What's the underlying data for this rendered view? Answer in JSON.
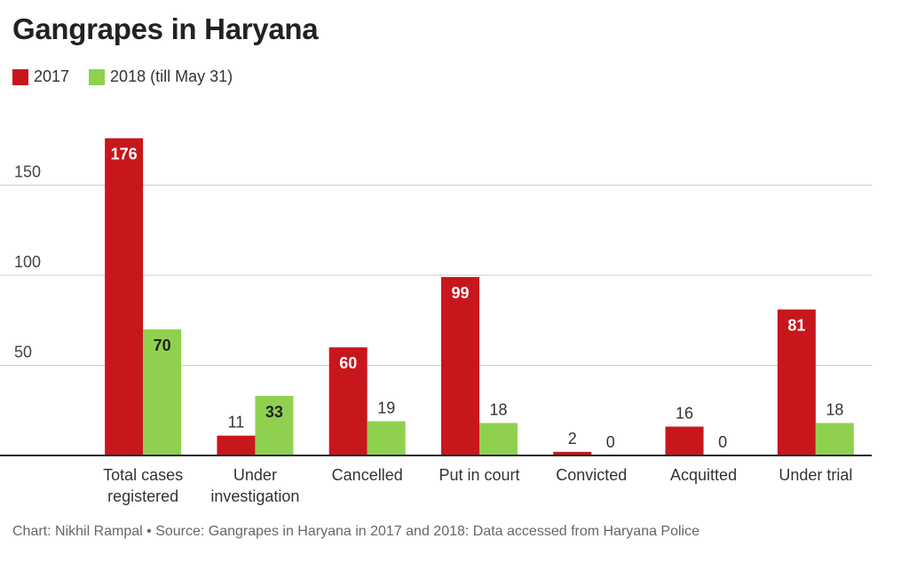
{
  "title": "Gangrapes in Haryana",
  "footer": "Chart: Nikhil Rampal • Source: Gangrapes in Haryana in 2017 and 2018: Data accessed from Haryana Police",
  "colors": {
    "s2017": "#c8161d",
    "s2018": "#8fd14f",
    "grid": "#cccccc",
    "axis": "#222222"
  },
  "chart_data": {
    "type": "bar",
    "title": "Gangrapes in Haryana",
    "categories": [
      [
        "Total cases",
        "registered"
      ],
      [
        "Under",
        "investigation"
      ],
      [
        "Cancelled"
      ],
      [
        "Put in court"
      ],
      [
        "Convicted"
      ],
      [
        "Acquitted"
      ],
      [
        "Under trial"
      ]
    ],
    "series": [
      {
        "name": "2017",
        "values": [
          176,
          11,
          60,
          99,
          2,
          16,
          81
        ]
      },
      {
        "name": "2018 (till May 31)",
        "values": [
          70,
          33,
          19,
          18,
          0,
          0,
          18
        ]
      }
    ],
    "yticks": [
      50,
      100,
      150
    ],
    "ylim": [
      0,
      180
    ],
    "grid": true,
    "legend_position": "top-left",
    "xlabel": "",
    "ylabel": ""
  }
}
